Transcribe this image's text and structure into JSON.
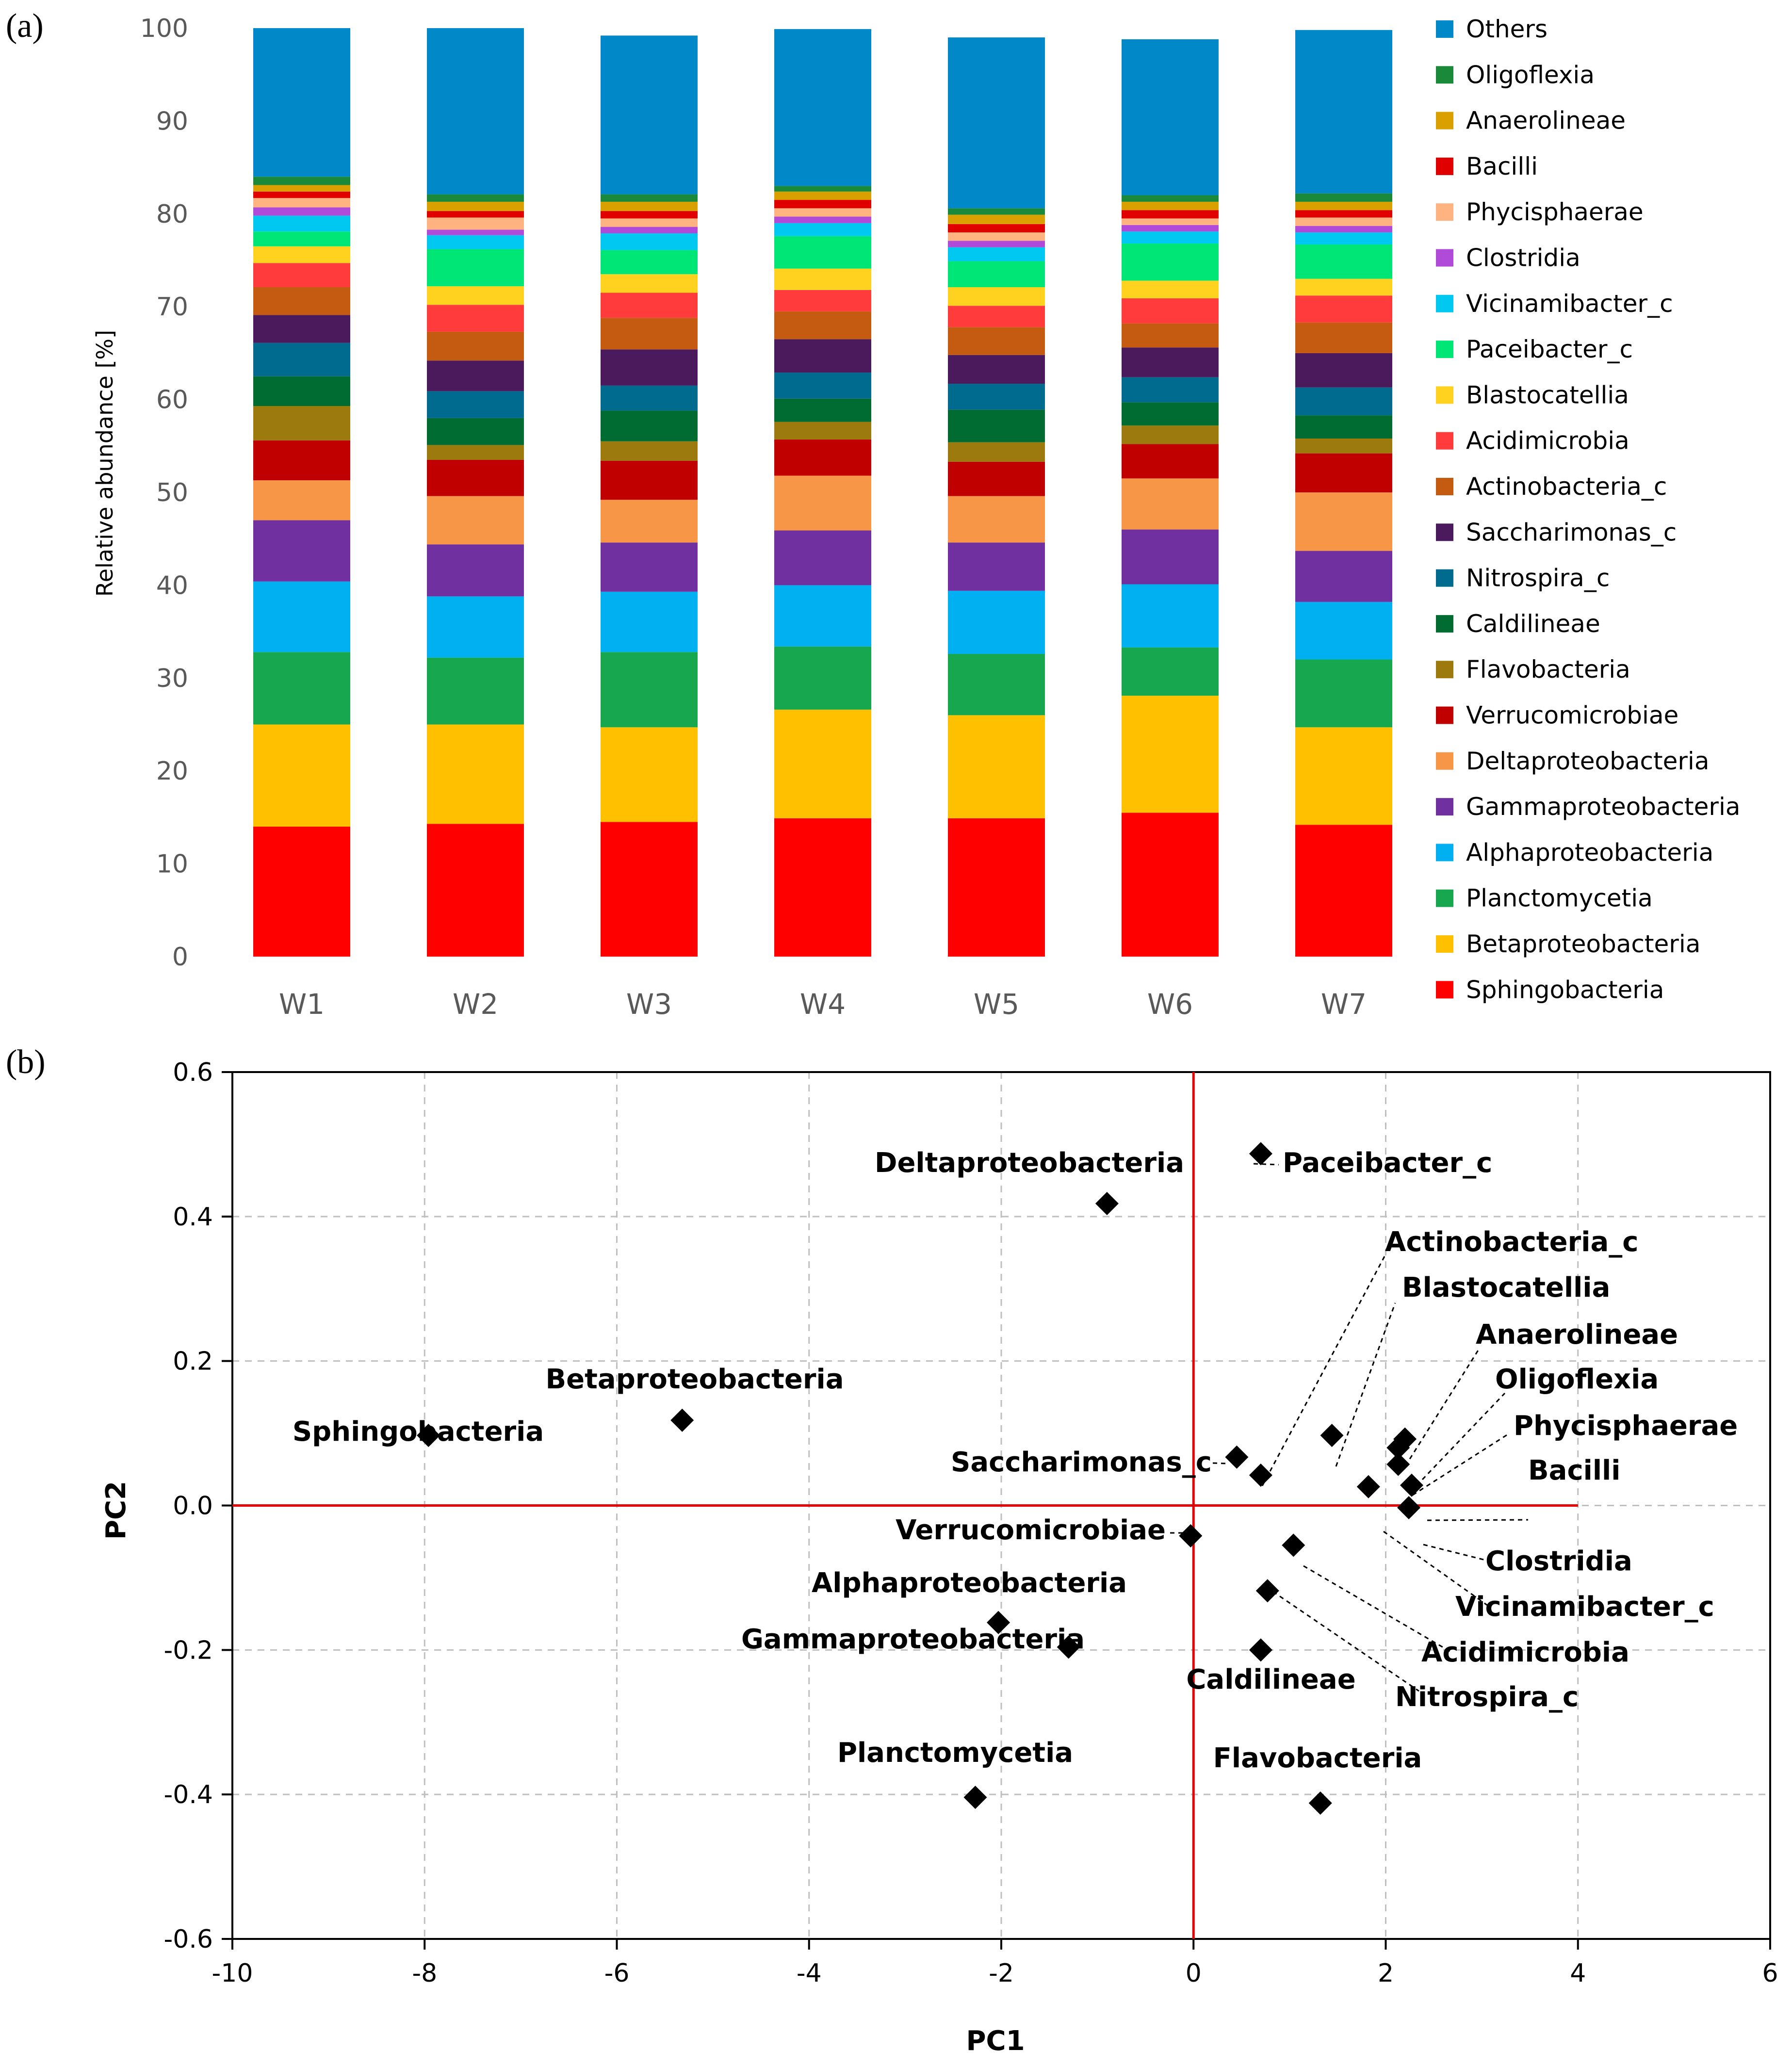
{
  "panels": {
    "a": {
      "label": "(a)"
    },
    "b": {
      "label": "(b)"
    }
  },
  "chart_data": [
    {
      "type": "bar",
      "stacked": true,
      "panel": "a",
      "ylabel": "Relative abundance [%]",
      "xlabel": "",
      "ylim": [
        0,
        100
      ],
      "yticks": [
        0,
        10,
        20,
        30,
        40,
        50,
        60,
        70,
        80,
        90,
        100
      ],
      "categories": [
        "W1",
        "W2",
        "W3",
        "W4",
        "W5",
        "W6",
        "W7"
      ],
      "legend_position": "right",
      "series": [
        {
          "name": "Sphingobacteria",
          "color": "#FF0000",
          "values": [
            14.0,
            14.3,
            14.5,
            14.9,
            14.9,
            15.5,
            14.2
          ]
        },
        {
          "name": "Betaproteobacteria",
          "color": "#FFC000",
          "values": [
            11.0,
            10.7,
            10.2,
            11.7,
            11.1,
            12.6,
            10.5
          ]
        },
        {
          "name": "Planctomycetia",
          "color": "#17A84F",
          "values": [
            7.8,
            7.2,
            8.1,
            6.8,
            6.6,
            5.2,
            7.3
          ]
        },
        {
          "name": "Alphaproteobacteria",
          "color": "#00B0F0",
          "values": [
            7.6,
            6.6,
            6.5,
            6.6,
            6.8,
            6.8,
            6.2
          ]
        },
        {
          "name": "Gammaproteobacteria",
          "color": "#7030A0",
          "values": [
            6.6,
            5.6,
            5.3,
            5.9,
            5.2,
            5.9,
            5.5
          ]
        },
        {
          "name": "Deltaproteobacteria",
          "color": "#F79646",
          "values": [
            4.3,
            5.2,
            4.6,
            5.9,
            5.0,
            5.5,
            6.3
          ]
        },
        {
          "name": "Verrucomicrobiae",
          "color": "#C00000",
          "values": [
            4.3,
            3.9,
            4.2,
            3.9,
            3.7,
            3.7,
            4.2
          ]
        },
        {
          "name": "Flavobacteria",
          "color": "#9C7A0E",
          "values": [
            3.7,
            1.6,
            2.1,
            1.9,
            2.1,
            2.0,
            1.6
          ]
        },
        {
          "name": "Caldilineae",
          "color": "#006C31",
          "values": [
            3.2,
            2.9,
            3.3,
            2.5,
            3.5,
            2.5,
            2.5
          ]
        },
        {
          "name": "Nitrospira_c",
          "color": "#006B8F",
          "values": [
            3.6,
            2.9,
            2.7,
            2.8,
            2.8,
            2.7,
            3.0
          ]
        },
        {
          "name": "Saccharimonas_c",
          "color": "#4A1A5C",
          "values": [
            3.0,
            3.3,
            3.9,
            3.6,
            3.1,
            3.2,
            3.7
          ]
        },
        {
          "name": "Actinobacteria_c",
          "color": "#C55A11",
          "values": [
            3.0,
            3.1,
            3.4,
            3.0,
            3.0,
            2.6,
            3.3
          ]
        },
        {
          "name": "Acidimicrobia",
          "color": "#FF3B3B",
          "values": [
            2.6,
            2.9,
            2.7,
            2.3,
            2.3,
            2.7,
            2.9
          ]
        },
        {
          "name": "Blastocatellia",
          "color": "#FFD21F",
          "values": [
            1.8,
            2.0,
            2.0,
            2.3,
            2.0,
            1.9,
            1.8
          ]
        },
        {
          "name": "Paceibacter_c",
          "color": "#00E676",
          "values": [
            1.6,
            4.0,
            2.6,
            3.5,
            2.8,
            4.0,
            3.7
          ]
        },
        {
          "name": "Vicinamibacter_c",
          "color": "#00C8F0",
          "values": [
            1.7,
            1.5,
            1.8,
            1.4,
            1.5,
            1.3,
            1.3
          ]
        },
        {
          "name": "Clostridia",
          "color": "#B04AD9",
          "values": [
            0.9,
            0.6,
            0.7,
            0.7,
            0.7,
            0.7,
            0.7
          ]
        },
        {
          "name": "Phycisphaerae",
          "color": "#FFB380",
          "values": [
            1.0,
            1.3,
            0.9,
            0.9,
            0.9,
            0.7,
            0.9
          ]
        },
        {
          "name": "Bacilli",
          "color": "#E00000",
          "values": [
            0.7,
            0.7,
            0.8,
            0.9,
            0.9,
            0.9,
            0.8
          ]
        },
        {
          "name": "Anaerolineae",
          "color": "#D9A000",
          "values": [
            0.7,
            1.0,
            1.0,
            0.9,
            1.0,
            0.9,
            0.9
          ]
        },
        {
          "name": "Oligoflexia",
          "color": "#1A8A3A",
          "values": [
            0.9,
            0.8,
            0.8,
            0.6,
            0.7,
            0.7,
            0.9
          ]
        },
        {
          "name": "Others",
          "color": "#0088C8",
          "values": [
            16.0,
            17.9,
            17.1,
            16.9,
            18.4,
            16.8,
            17.6
          ]
        }
      ]
    },
    {
      "type": "scatter",
      "panel": "b",
      "xlabel": "PC1",
      "ylabel": "PC2",
      "xlim": [
        -10,
        6
      ],
      "ylim": [
        -0.6,
        0.6
      ],
      "xticks": [
        -10,
        -8,
        -6,
        -4,
        -2,
        0,
        2,
        4,
        6
      ],
      "yticks": [
        -0.6,
        -0.4,
        -0.2,
        0.0,
        0.2,
        0.4,
        0.6
      ],
      "ytick_labels": [
        "-0.6",
        "-0.4",
        "-0.2",
        "0.0",
        "0.2",
        "0.4",
        "0.6"
      ],
      "grid": true,
      "reference_lines": {
        "x": 0,
        "y": 0,
        "x_extent": [
          -10,
          4
        ],
        "color": "#E00000"
      },
      "points": [
        {
          "name": "Sphingobacteria",
          "x": -7.96,
          "y": 0.097
        },
        {
          "name": "Betaproteobacteria",
          "x": -5.32,
          "y": 0.118
        },
        {
          "name": "Deltaproteobacteria",
          "x": -0.9,
          "y": 0.418
        },
        {
          "name": "Paceibacter_c",
          "x": 0.7,
          "y": 0.487
        },
        {
          "name": "Saccharimonas_c",
          "x": 0.45,
          "y": 0.067
        },
        {
          "name": "Actinobacteria_c",
          "x": 0.7,
          "y": 0.042
        },
        {
          "name": "Blastocatellia",
          "x": 1.44,
          "y": 0.097
        },
        {
          "name": "Anaerolineae",
          "x": 2.13,
          "y": 0.08
        },
        {
          "name": "Oligoflexia",
          "x": 2.2,
          "y": 0.092
        },
        {
          "name": "Phycisphaerae",
          "x": 2.13,
          "y": 0.057
        },
        {
          "name": "Bacilli",
          "x": 2.27,
          "y": 0.028
        },
        {
          "name": "Clostridia",
          "x": 2.24,
          "y": -0.003
        },
        {
          "name": "Vicinamibacter_c",
          "x": 1.82,
          "y": 0.026
        },
        {
          "name": "Acidimicrobia",
          "x": 1.04,
          "y": -0.055
        },
        {
          "name": "Nitrospira_c",
          "x": 0.77,
          "y": -0.118
        },
        {
          "name": "Caldilineae",
          "x": 0.7,
          "y": -0.2
        },
        {
          "name": "Verrucomicrobiae",
          "x": -0.03,
          "y": -0.042
        },
        {
          "name": "Alphaproteobacteria",
          "x": -2.03,
          "y": -0.162
        },
        {
          "name": "Gammaproteobacteria",
          "x": -1.3,
          "y": -0.196
        },
        {
          "name": "Planctomycetia",
          "x": -2.27,
          "y": -0.404
        },
        {
          "name": "Flavobacteria",
          "x": 1.32,
          "y": -0.412
        }
      ]
    }
  ]
}
